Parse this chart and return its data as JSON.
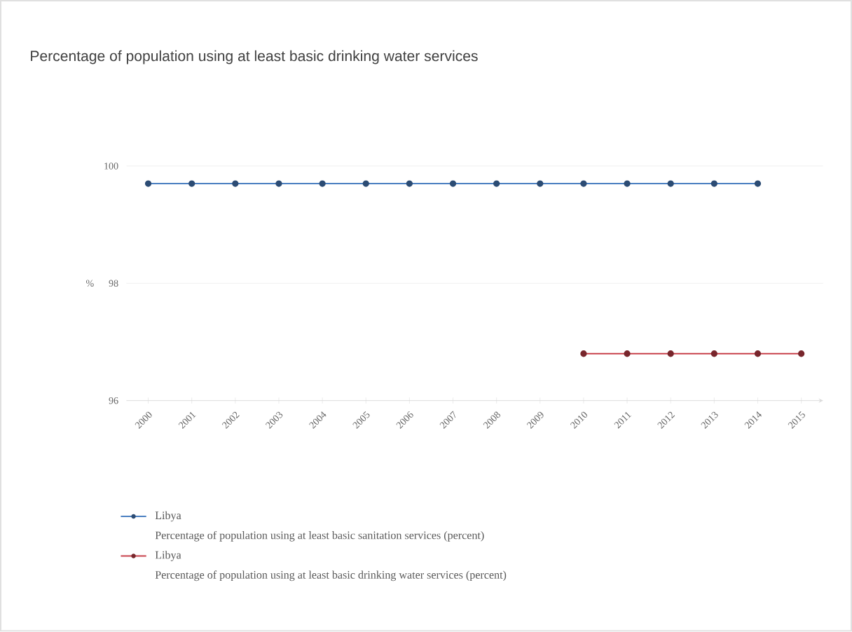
{
  "chart_data": {
    "type": "line",
    "title": "Percentage of population using at least basic drinking water services",
    "ylabel": "%",
    "categories": [
      "2000",
      "2001",
      "2002",
      "2003",
      "2004",
      "2005",
      "2006",
      "2007",
      "2008",
      "2009",
      "2010",
      "2011",
      "2012",
      "2013",
      "2014",
      "2015"
    ],
    "series": [
      {
        "name": "Libya",
        "color": "#4a7fc1",
        "values": [
          99.7,
          99.7,
          99.7,
          99.7,
          99.7,
          99.7,
          99.7,
          99.7,
          99.7,
          99.7,
          99.7,
          99.7,
          99.7,
          99.7,
          99.7,
          null
        ]
      },
      {
        "name": "Libya",
        "color": "#c8404a",
        "values": [
          null,
          null,
          null,
          null,
          null,
          null,
          null,
          null,
          null,
          null,
          96.8,
          96.8,
          96.8,
          96.8,
          96.8,
          96.8
        ]
      }
    ],
    "annotations": [
      "Percentage of population using at least basic sanitation services (percent)",
      "Percentage of population using at least basic drinking water services (percent)"
    ],
    "ylim": [
      96,
      100
    ],
    "yticks": [
      96,
      98,
      100
    ],
    "grid": "y",
    "marker": "circle",
    "line_style": "solid",
    "legend": "bottom"
  }
}
